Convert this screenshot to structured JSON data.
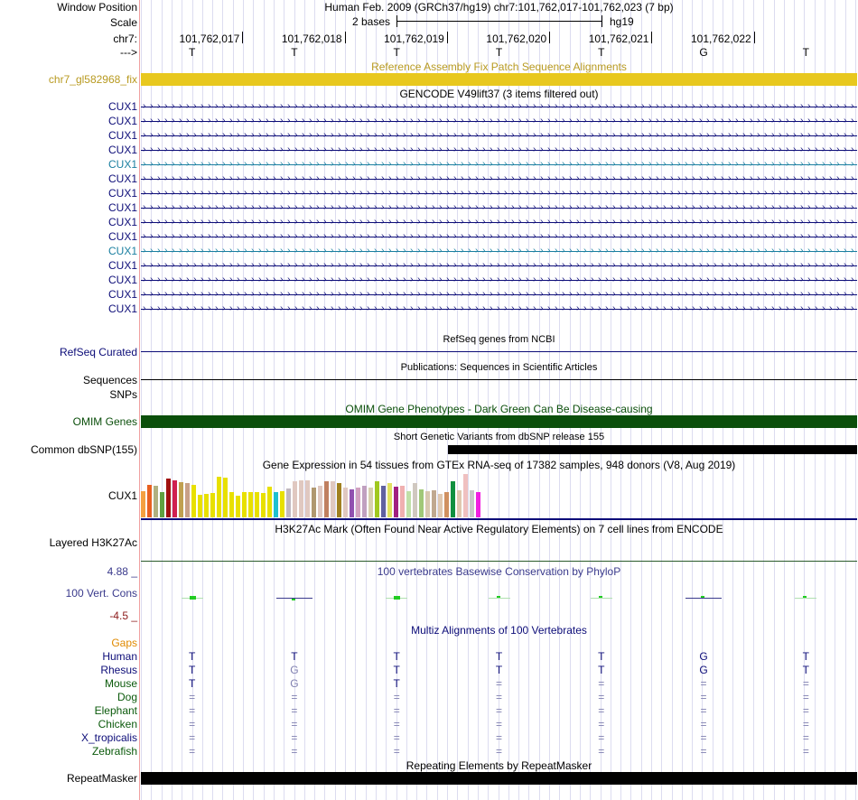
{
  "header": {
    "window_label": "Window Position",
    "window_value": "Human Feb. 2009 (GRCh37/hg19)   chr7:101,762,017-101,762,023 (7 bp)",
    "scale_label": "Scale",
    "scale_text": "2 bases",
    "scale_assembly": "hg19",
    "chrom_label": "chr7:",
    "strand_label": "--->",
    "positions": [
      "101,762,017",
      "101,762,018",
      "101,762,019",
      "101,762,020",
      "101,762,021",
      "101,762,022"
    ],
    "bases": [
      "T",
      "T",
      "T",
      "T",
      "T",
      "G",
      "T"
    ]
  },
  "fix_track": {
    "title": "Reference Assembly Fix Patch Sequence Alignments",
    "label": "chr7_gl582968_fix",
    "color": "#e8c81e"
  },
  "gencode": {
    "title": "GENCODE V49lift37 (3 items filtered out)",
    "rows": [
      {
        "label": "CUX1",
        "color": "#0c0c78"
      },
      {
        "label": "CUX1",
        "color": "#0c0c78"
      },
      {
        "label": "CUX1",
        "color": "#0c0c78"
      },
      {
        "label": "CUX1",
        "color": "#0c0c78"
      },
      {
        "label": "CUX1",
        "color": "#1a7fa0"
      },
      {
        "label": "CUX1",
        "color": "#0c0c78"
      },
      {
        "label": "CUX1",
        "color": "#0c0c78"
      },
      {
        "label": "CUX1",
        "color": "#0c0c78"
      },
      {
        "label": "CUX1",
        "color": "#0c0c78"
      },
      {
        "label": "CUX1",
        "color": "#0c0c78"
      },
      {
        "label": "CUX1",
        "color": "#1a7fa0"
      },
      {
        "label": "CUX1",
        "color": "#0c0c78"
      },
      {
        "label": "CUX1",
        "color": "#0c0c78"
      },
      {
        "label": "CUX1",
        "color": "#0c0c78"
      },
      {
        "label": "CUX1",
        "color": "#0c0c78"
      }
    ]
  },
  "refseq": {
    "title": "RefSeq genes from NCBI",
    "label": "RefSeq Curated"
  },
  "pubs": {
    "title": "Publications: Sequences in Scientific Articles",
    "label1": "Sequences",
    "label2": "SNPs"
  },
  "omim": {
    "title": "OMIM Gene Phenotypes - Dark Green Can Be Disease-causing",
    "label": "OMIM Genes",
    "color": "#0b4f0b"
  },
  "dbsnp": {
    "title": "Short Genetic Variants from dbSNP release 155",
    "label": "Common dbSNP(155)"
  },
  "gtex": {
    "title": "Gene Expression in 54 tissues from GTEx RNA-seq of 17382 samples, 948 donors (V8, Aug 2019)",
    "label": "CUX1",
    "values": [
      0.58,
      0.72,
      0.7,
      0.55,
      0.85,
      0.82,
      0.78,
      0.75,
      0.72,
      0.5,
      0.52,
      0.54,
      0.9,
      0.88,
      0.55,
      0.48,
      0.55,
      0.55,
      0.55,
      0.54,
      0.68,
      0.55,
      0.58,
      0.63,
      0.8,
      0.82,
      0.82,
      0.65,
      0.7,
      0.8,
      0.8,
      0.75,
      0.65,
      0.62,
      0.65,
      0.7,
      0.65,
      0.8,
      0.7,
      0.75,
      0.68,
      0.7,
      0.58,
      0.75,
      0.62,
      0.58,
      0.6,
      0.52,
      0.55,
      0.8,
      0.6,
      0.96,
      0.6,
      0.55
    ],
    "colors": [
      "#f4a040",
      "#e86020",
      "#b0b080",
      "#60a040",
      "#a01010",
      "#d02050",
      "#c0a050",
      "#c8a088",
      "#e8e000",
      "#e8e000",
      "#e8e000",
      "#e8e000",
      "#e8e000",
      "#e8e000",
      "#e8e000",
      "#e8e000",
      "#e8e000",
      "#e8e000",
      "#e8e000",
      "#e8e000",
      "#e8e000",
      "#20c0d0",
      "#e8e000",
      "#c0b8c0",
      "#e0c8c0",
      "#e0c8c0",
      "#e0c8c0",
      "#b09870",
      "#e0c8c0",
      "#c08060",
      "#e0c8c0",
      "#a08020",
      "#e0c8c0",
      "#9050b0",
      "#d0a0c0",
      "#c0a0c0",
      "#d8d0b0",
      "#a0c820",
      "#6060a0",
      "#e0e060",
      "#a02080",
      "#f0b0b0",
      "#c0e0a8",
      "#d0c8c0",
      "#a0c878",
      "#d8c8b0",
      "#c0a890",
      "#e0c8b0",
      "#d09060",
      "#109040",
      "#e0c8b0",
      "#f0c0c0",
      "#c8c8c8",
      "#f020e0"
    ]
  },
  "h3k27": {
    "title": "H3K27Ac Mark (Often Found Near Active Regulatory Elements) on 7 cell lines from ENCODE",
    "label": "Layered H3K27Ac"
  },
  "phylop": {
    "title": "100 vertebrates Basewise Conservation by PhyloP",
    "label": "100 Vert. Cons",
    "max": "4.88 _",
    "min": "-4.5 _"
  },
  "multiz": {
    "title": "Multiz Alignments of 100 Vertebrates",
    "gaps_label": "Gaps",
    "species": [
      {
        "name": "Human",
        "color": "#0c0c78",
        "bases": [
          "T",
          "T",
          "T",
          "T",
          "T",
          "G",
          "T"
        ],
        "base_colors": [
          "#0c0c78",
          "#0c0c78",
          "#0c0c78",
          "#0c0c78",
          "#0c0c78",
          "#0c0c78",
          "#0c0c78"
        ]
      },
      {
        "name": "Rhesus",
        "color": "#0c0c78",
        "bases": [
          "T",
          "G",
          "T",
          "T",
          "T",
          "G",
          "T"
        ],
        "base_colors": [
          "#0c0c78",
          "#8080b0",
          "#0c0c78",
          "#0c0c78",
          "#0c0c78",
          "#0c0c78",
          "#0c0c78"
        ]
      },
      {
        "name": "Mouse",
        "color": "#0b5a0b",
        "bases": [
          "T",
          "G",
          "T",
          "=",
          "=",
          "=",
          "="
        ],
        "base_colors": [
          "#0c0c78",
          "#8080b0",
          "#0c0c78",
          "#8080b0",
          "#8080b0",
          "#8080b0",
          "#8080b0"
        ]
      },
      {
        "name": "Dog",
        "color": "#0b5a0b",
        "bases": [
          "=",
          "=",
          "=",
          "=",
          "=",
          "=",
          "="
        ],
        "base_colors": [
          "#8080b0",
          "#8080b0",
          "#8080b0",
          "#8080b0",
          "#8080b0",
          "#8080b0",
          "#8080b0"
        ]
      },
      {
        "name": "Elephant",
        "color": "#0b5a0b",
        "bases": [
          "=",
          "=",
          "=",
          "=",
          "=",
          "=",
          "="
        ],
        "base_colors": [
          "#8080b0",
          "#8080b0",
          "#8080b0",
          "#8080b0",
          "#8080b0",
          "#8080b0",
          "#8080b0"
        ]
      },
      {
        "name": "Chicken",
        "color": "#0b5a0b",
        "bases": [
          "=",
          "=",
          "=",
          "=",
          "=",
          "=",
          "="
        ],
        "base_colors": [
          "#8080b0",
          "#8080b0",
          "#8080b0",
          "#8080b0",
          "#8080b0",
          "#8080b0",
          "#8080b0"
        ]
      },
      {
        "name": "X_tropicalis",
        "color": "#0c0c78",
        "bases": [
          "=",
          "=",
          "=",
          "=",
          "=",
          "=",
          "="
        ],
        "base_colors": [
          "#8080b0",
          "#8080b0",
          "#8080b0",
          "#8080b0",
          "#8080b0",
          "#8080b0",
          "#8080b0"
        ]
      },
      {
        "name": "Zebrafish",
        "color": "#0b5a0b",
        "bases": [
          "=",
          "=",
          "=",
          "=",
          "=",
          "=",
          "="
        ],
        "base_colors": [
          "#8080b0",
          "#8080b0",
          "#8080b0",
          "#8080b0",
          "#8080b0",
          "#8080b0",
          "#8080b0"
        ]
      }
    ]
  },
  "repeatmasker": {
    "title": "Repeating Elements by RepeatMasker",
    "label": "RepeatMasker"
  },
  "colors": {
    "title_blue": "#0c0c78",
    "fix_text": "#b89a20",
    "omim_green": "#0b4f0b",
    "phylop_blue": "#3a3a8c",
    "phylop_red": "#8c1a1a",
    "gaps_orange": "#e08a00"
  }
}
